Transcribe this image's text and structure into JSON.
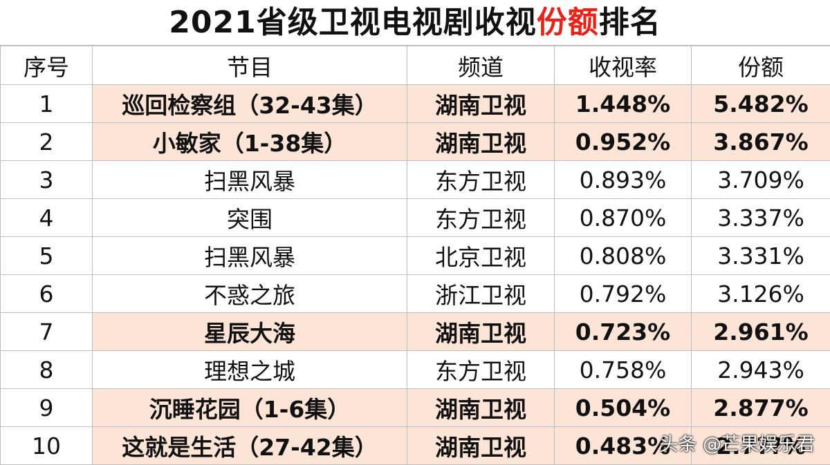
{
  "title": {
    "main": "2021省级卫视电视剧收视",
    "accent": "份额",
    "tail": "排名",
    "accent_color": "#e8231a"
  },
  "headers": [
    "序号",
    "节目",
    "频道",
    "收视率",
    "份额"
  ],
  "highlight_color": "#fce4d6",
  "rows": [
    {
      "rank": "1",
      "program": "巡回检察组（32-43集）",
      "channel": "湖南卫视",
      "rating": "1.448%",
      "share": "5.482%",
      "highlight": true
    },
    {
      "rank": "2",
      "program": "小敏家（1-38集）",
      "channel": "湖南卫视",
      "rating": "0.952%",
      "share": "3.867%",
      "highlight": true
    },
    {
      "rank": "3",
      "program": "扫黑风暴",
      "channel": "东方卫视",
      "rating": "0.893%",
      "share": "3.709%",
      "highlight": false
    },
    {
      "rank": "4",
      "program": "突围",
      "channel": "东方卫视",
      "rating": "0.870%",
      "share": "3.337%",
      "highlight": false
    },
    {
      "rank": "5",
      "program": "扫黑风暴",
      "channel": "北京卫视",
      "rating": "0.808%",
      "share": "3.331%",
      "highlight": false
    },
    {
      "rank": "6",
      "program": "不惑之旅",
      "channel": "浙江卫视",
      "rating": "0.792%",
      "share": "3.126%",
      "highlight": false
    },
    {
      "rank": "7",
      "program": "星辰大海",
      "channel": "湖南卫视",
      "rating": "0.723%",
      "share": "2.961%",
      "highlight": true
    },
    {
      "rank": "8",
      "program": "理想之城",
      "channel": "东方卫视",
      "rating": "0.758%",
      "share": "2.943%",
      "highlight": false
    },
    {
      "rank": "9",
      "program": "沉睡花园（1-6集）",
      "channel": "湖南卫视",
      "rating": "0.504%",
      "share": "2.877%",
      "highlight": true
    },
    {
      "rank": "10",
      "program": "这就是生活（27-42集）",
      "channel": "湖南卫视",
      "rating": "0.483%",
      "share": "2.7??%",
      "highlight": true
    }
  ],
  "watermark": "头条 @芒果娱乐君"
}
